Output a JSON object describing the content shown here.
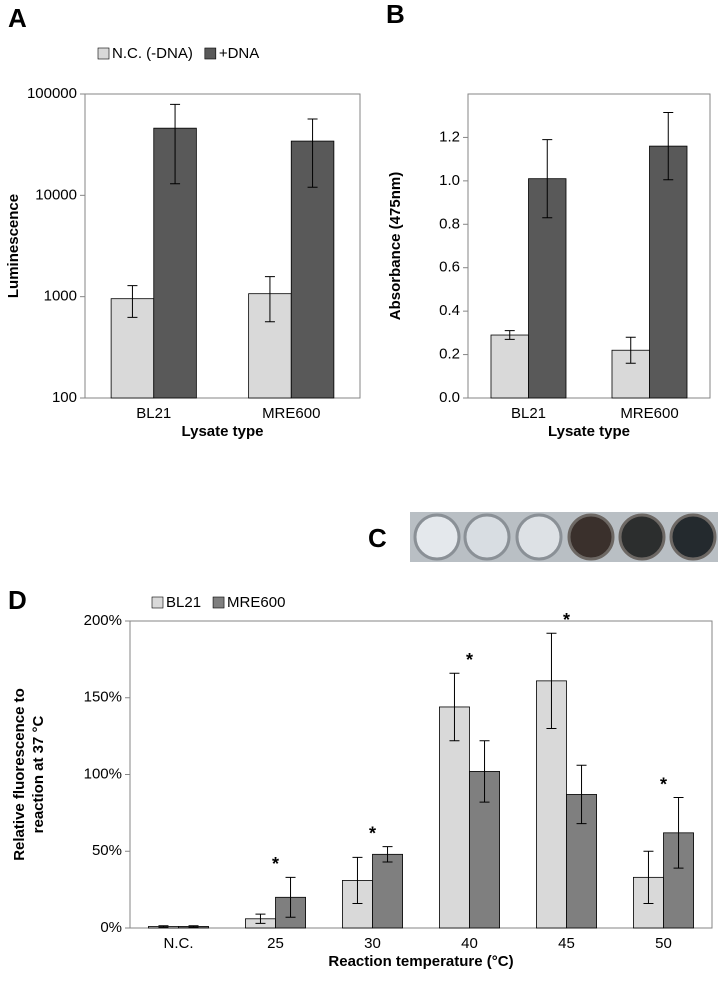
{
  "chart_data": [
    {
      "type": "bar",
      "panel": "A",
      "xlabel": "Lysate type",
      "ylabel": "Luminescence",
      "categories": [
        "BL21",
        "MRE600"
      ],
      "log": true,
      "ylim": [
        100,
        100000
      ],
      "yticks": [
        100,
        1000,
        10000,
        100000
      ],
      "legend": "top-left",
      "series": [
        {
          "name": "N.C. (-DNA)",
          "color": "#d9d9d9",
          "values": [
            955,
            1070
          ],
          "errors": [
            330,
            505
          ]
        },
        {
          "name": "+DNA",
          "color": "#595959",
          "values": [
            46000,
            34300
          ],
          "errors": [
            33000,
            22300
          ]
        }
      ]
    },
    {
      "type": "bar",
      "panel": "B",
      "xlabel": "Lysate type",
      "ylabel": "Absorbance (475nm)",
      "categories": [
        "BL21",
        "MRE600"
      ],
      "ylim": [
        0,
        1.4
      ],
      "yticks": [
        {
          "value": 0,
          "label": "0.0"
        },
        0.2,
        0.4,
        0.6,
        0.8,
        {
          "value": 1,
          "label": "1.0"
        },
        1.2
      ],
      "series": [
        {
          "color": "#d9d9d9",
          "values": [
            0.29,
            0.22
          ],
          "errors": [
            0.02,
            0.06
          ]
        },
        {
          "color": "#595959",
          "values": [
            1.01,
            1.16
          ],
          "errors": [
            0.18,
            0.155
          ]
        }
      ]
    },
    {
      "type": "bar",
      "panel": "D",
      "xlabel": "Reaction temperature (°C)",
      "ylabel": [
        "Relative fluorescence to",
        "reaction at 37 °C"
      ],
      "categories": [
        "N.C.",
        "25",
        "30",
        "40",
        "45",
        "50"
      ],
      "ylim": [
        0,
        200
      ],
      "yticks": [
        {
          "value": 0,
          "label": "0%"
        },
        {
          "value": 50,
          "label": "50%"
        },
        {
          "value": 100,
          "label": "100%"
        },
        {
          "value": 150,
          "label": "150%"
        },
        {
          "value": 200,
          "label": "200%"
        }
      ],
      "legend": "top-left",
      "annotations": [
        {
          "x": "25",
          "text": "*"
        },
        {
          "x": "30",
          "text": "*"
        },
        {
          "x": "40",
          "text": "*"
        },
        {
          "x": "45",
          "text": "*"
        },
        {
          "x": "50",
          "text": "*"
        }
      ],
      "series": [
        {
          "name": "BL21",
          "color": "#d9d9d9",
          "values": [
            1,
            6,
            31,
            144,
            161,
            33
          ],
          "errors": [
            0.5,
            3,
            15,
            22,
            31,
            17
          ]
        },
        {
          "name": "MRE600",
          "color": "#7f7f7f",
          "values": [
            1,
            20,
            48,
            102,
            87,
            62
          ],
          "errors": [
            0.5,
            13,
            5,
            20,
            19,
            23
          ]
        }
      ]
    }
  ],
  "photo": {
    "panel": "C"
  }
}
